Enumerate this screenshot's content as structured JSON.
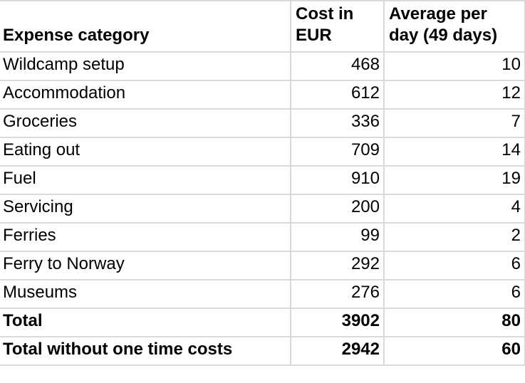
{
  "table": {
    "headers": {
      "category": "Expense category",
      "cost": "Cost in EUR",
      "avg": "Average per day (49 days)"
    },
    "rows": [
      {
        "category": "Wildcamp setup",
        "cost_eur": "468",
        "avg_per_day": "10"
      },
      {
        "category": "Accommodation",
        "cost_eur": "612",
        "avg_per_day": "12"
      },
      {
        "category": "Groceries",
        "cost_eur": "336",
        "avg_per_day": "7"
      },
      {
        "category": "Eating out",
        "cost_eur": "709",
        "avg_per_day": "14"
      },
      {
        "category": "Fuel",
        "cost_eur": "910",
        "avg_per_day": "19"
      },
      {
        "category": "Servicing",
        "cost_eur": "200",
        "avg_per_day": "4"
      },
      {
        "category": "Ferries",
        "cost_eur": "99",
        "avg_per_day": "2"
      },
      {
        "category": "Ferry to Norway",
        "cost_eur": "292",
        "avg_per_day": "6"
      },
      {
        "category": "Museums",
        "cost_eur": "276",
        "avg_per_day": "6"
      },
      {
        "category": "Total",
        "cost_eur": "3902",
        "avg_per_day": "80"
      },
      {
        "category": "Total without one time costs",
        "cost_eur": "2942",
        "avg_per_day": "60"
      }
    ],
    "colors": {
      "gridline": "#d9d9d9",
      "background": "#ffffff",
      "text": "#000000"
    }
  }
}
